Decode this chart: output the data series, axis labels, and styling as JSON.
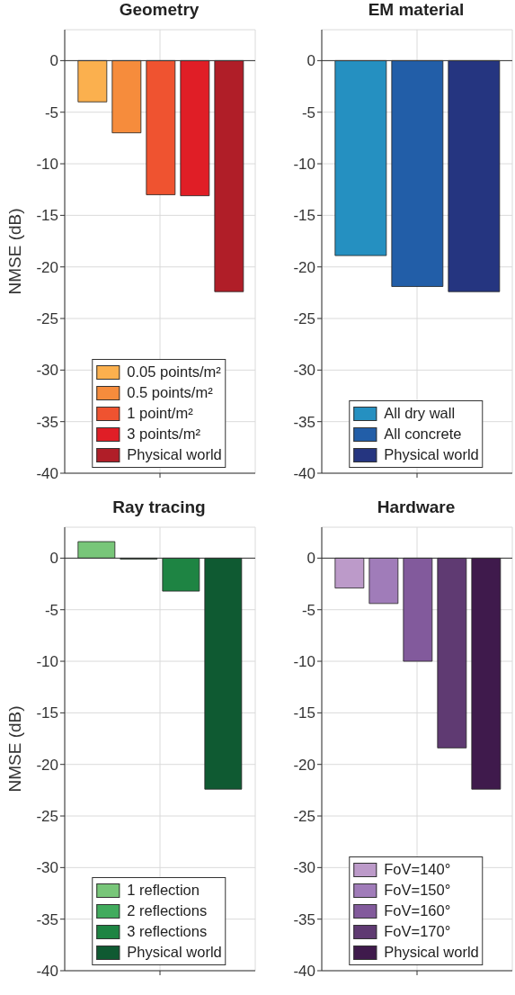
{
  "chart_data": [
    {
      "type": "bar",
      "title": "Geometry",
      "ylabel": "NMSE (dB)",
      "categories": [
        null
      ],
      "ylim": [
        -40,
        3
      ],
      "yticks": [
        0,
        -5,
        -10,
        -15,
        -20,
        -25,
        -30,
        -35,
        -40
      ],
      "grid": true,
      "legend": "bottom",
      "tick_labels": "y",
      "series": [
        {
          "name": "0.05 points/m²",
          "color": "#fbb04e",
          "values": [
            -4
          ]
        },
        {
          "name": "0.5 points/m²",
          "color": "#f68c3c",
          "values": [
            -7
          ]
        },
        {
          "name": "1 point/m²",
          "color": "#ef5330",
          "values": [
            -13
          ]
        },
        {
          "name": "3 points/m²",
          "color": "#e01e26",
          "values": [
            -13.1
          ]
        },
        {
          "name": "Physical world",
          "color": "#b01e28",
          "values": [
            -22.4
          ]
        }
      ]
    },
    {
      "type": "bar",
      "title": "EM material",
      "categories": [
        null
      ],
      "ylim": [
        -40,
        3
      ],
      "yticks": [
        0,
        -5,
        -10,
        -15,
        -20,
        -25,
        -30,
        -35,
        -40
      ],
      "grid": true,
      "legend": "bottom",
      "tick_labels": "y",
      "series": [
        {
          "name": "All dry wall",
          "color": "#2590c1",
          "values": [
            -18.9
          ]
        },
        {
          "name": "All concrete",
          "color": "#225ea8",
          "values": [
            -21.9
          ]
        },
        {
          "name": "Physical world",
          "color": "#253580",
          "values": [
            -22.4
          ]
        }
      ]
    },
    {
      "type": "bar",
      "title": "Ray tracing",
      "ylabel": "NMSE (dB)",
      "categories": [
        null
      ],
      "ylim": [
        -40,
        3
      ],
      "yticks": [
        0,
        -5,
        -10,
        -15,
        -20,
        -25,
        -30,
        -35,
        -40
      ],
      "grid": true,
      "legend": "bottom",
      "tick_labels": "y",
      "series": [
        {
          "name": "1 reflection",
          "color": "#78c679",
          "values": [
            1.6
          ]
        },
        {
          "name": "2 reflections",
          "color": "#41ab5d",
          "values": [
            -0.1
          ]
        },
        {
          "name": "3 reflections",
          "color": "#1e8443",
          "values": [
            -3.2
          ]
        },
        {
          "name": "Physical world",
          "color": "#0f5a32",
          "values": [
            -22.4
          ]
        }
      ]
    },
    {
      "type": "bar",
      "title": "Hardware",
      "categories": [
        null
      ],
      "ylim": [
        -40,
        3
      ],
      "yticks": [
        0,
        -5,
        -10,
        -15,
        -20,
        -25,
        -30,
        -35,
        -40
      ],
      "grid": true,
      "legend": "bottom",
      "tick_labels": "y",
      "series": [
        {
          "name": "FoV=140°",
          "color": "#bc9ac9",
          "values": [
            -2.9
          ]
        },
        {
          "name": "FoV=150°",
          "color": "#a07cb9",
          "values": [
            -4.4
          ]
        },
        {
          "name": "FoV=160°",
          "color": "#825a9c",
          "values": [
            -10
          ]
        },
        {
          "name": "FoV=170°",
          "color": "#5f3a72",
          "values": [
            -18.4
          ]
        },
        {
          "name": "Physical world",
          "color": "#3f1a4c",
          "values": [
            -22.4
          ]
        }
      ]
    }
  ]
}
